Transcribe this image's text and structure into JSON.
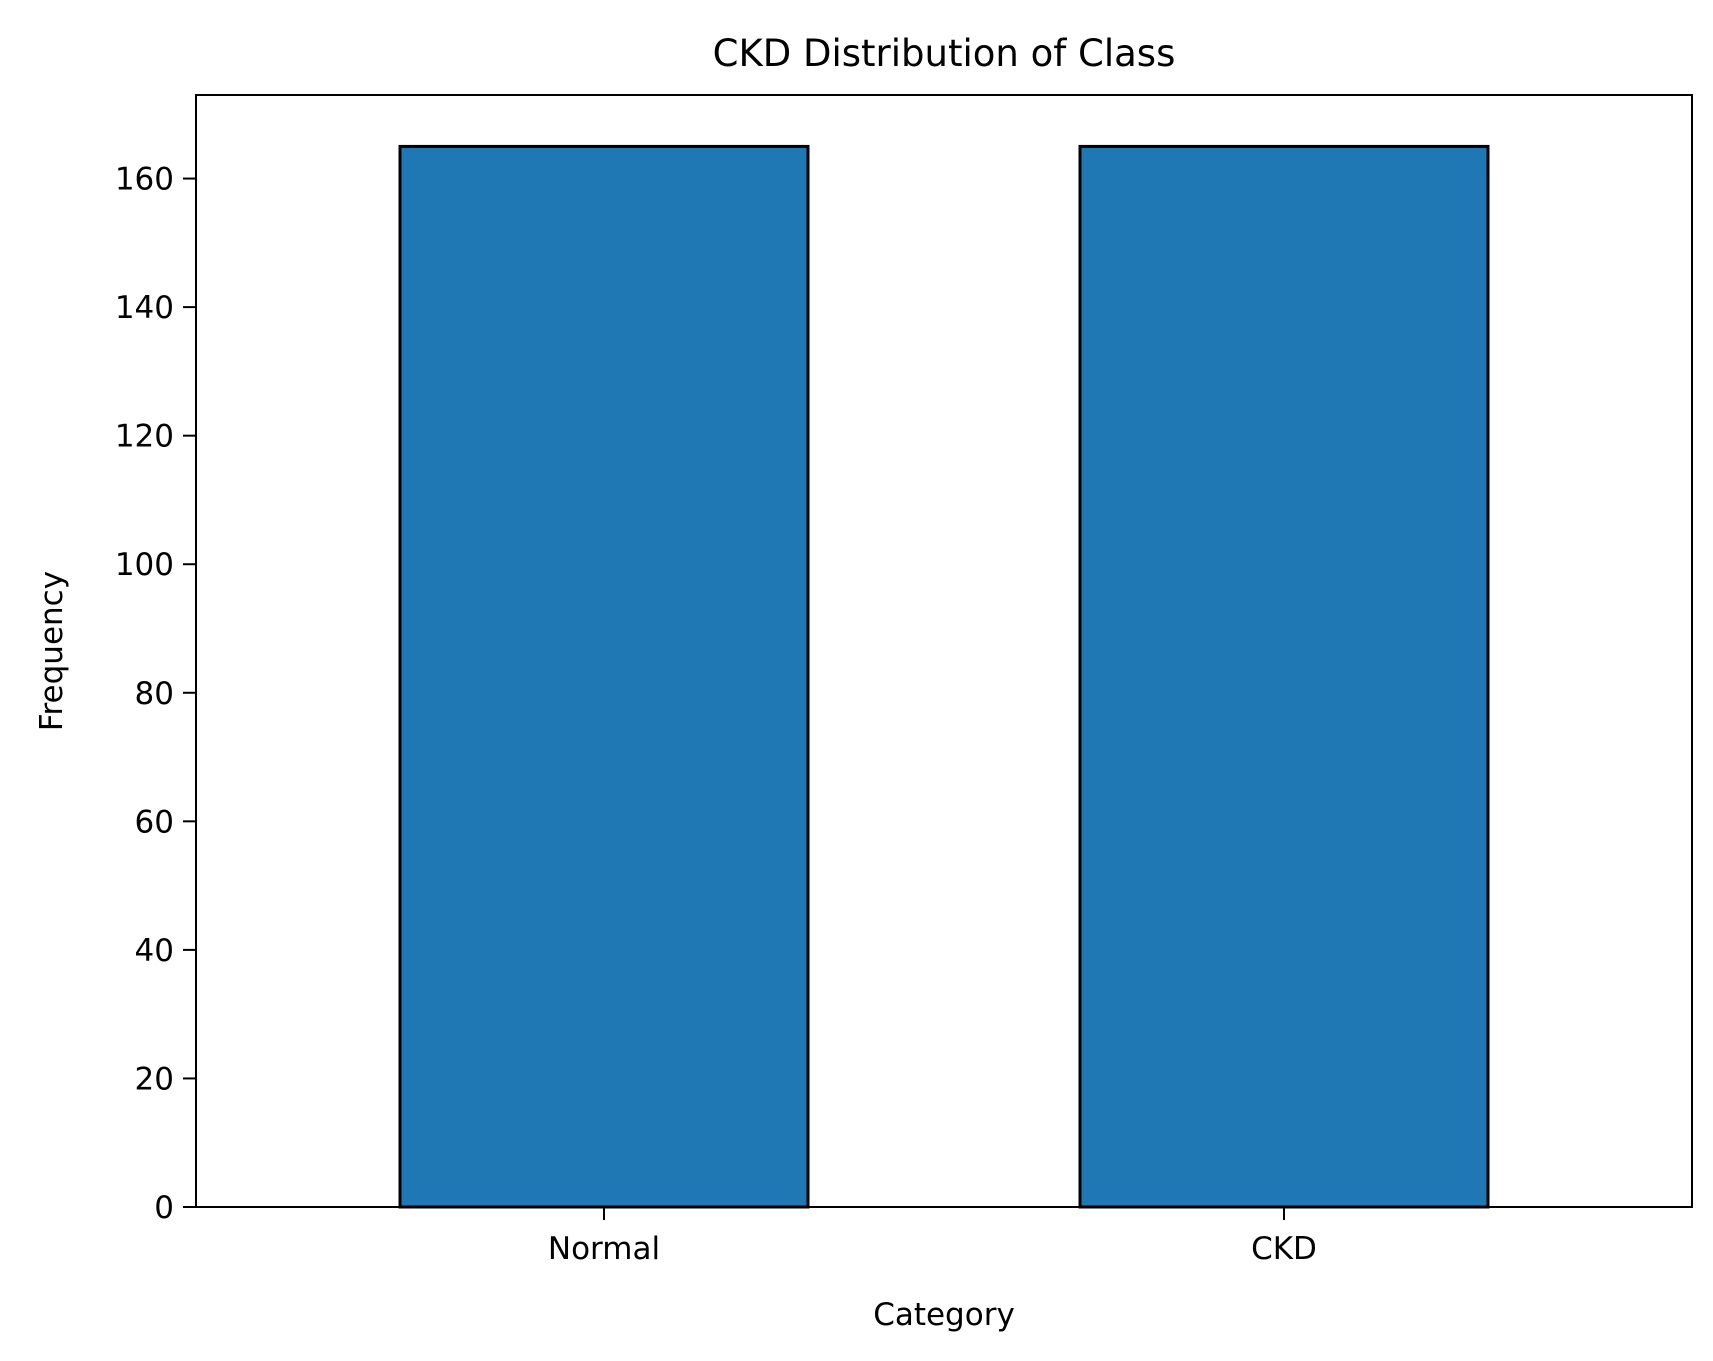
{
  "chart_data": {
    "type": "bar",
    "title": "CKD Distribution of Class",
    "xlabel": "Category",
    "ylabel": "Frequency",
    "categories": [
      "Normal",
      "CKD"
    ],
    "values": [
      165,
      165
    ],
    "ylim": [
      0,
      173
    ],
    "yticks": [
      0,
      20,
      40,
      60,
      80,
      100,
      120,
      140,
      160
    ],
    "grid": false,
    "legend": "none",
    "colors": {
      "bar_fill": "#1f77b4",
      "bar_edge": "#000000",
      "axes": "#000000",
      "background": "#ffffff"
    }
  }
}
